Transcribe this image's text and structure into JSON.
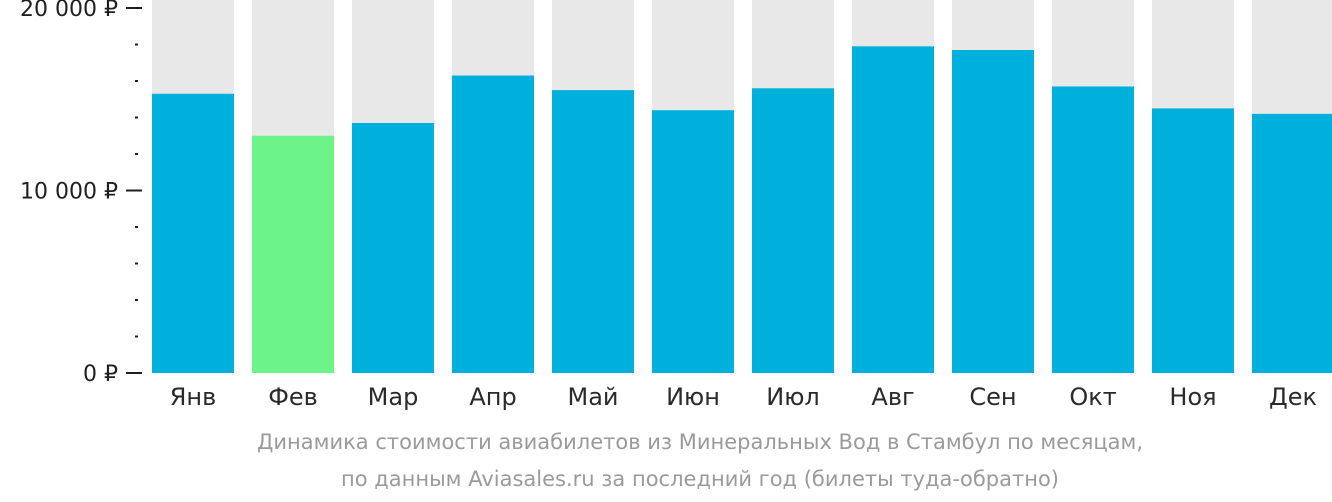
{
  "chart_data": {
    "type": "bar",
    "categories": [
      "Янв",
      "Фев",
      "Мар",
      "Апр",
      "Май",
      "Июн",
      "Июл",
      "Авг",
      "Сен",
      "Окт",
      "Ноя",
      "Дек"
    ],
    "values": [
      15300,
      13000,
      13700,
      16300,
      15500,
      14400,
      15600,
      17900,
      17700,
      15700,
      14500,
      14200
    ],
    "ylim": [
      0,
      20000
    ],
    "yticks": [
      {
        "value": 0,
        "label": "0 ₽"
      },
      {
        "value": 10000,
        "label": "10 000 ₽"
      },
      {
        "value": 20000,
        "label": "20 000 ₽"
      }
    ],
    "minor_tick_step": 2000,
    "highlight_index": 1,
    "grid": false,
    "legend": "none",
    "colors": {
      "bar": "#00b0dc",
      "highlight": "#6cf389",
      "background_column": "#e8e8e8",
      "axis": "#1f1f1f",
      "caption": "#9a9a9a"
    }
  },
  "caption": {
    "line1": "Динамика стоимости авиабилетов из Минеральных Вод в Стамбул по месяцам,",
    "line2": "по данным Aviasales.ru за последний год (билеты туда-обратно)"
  }
}
